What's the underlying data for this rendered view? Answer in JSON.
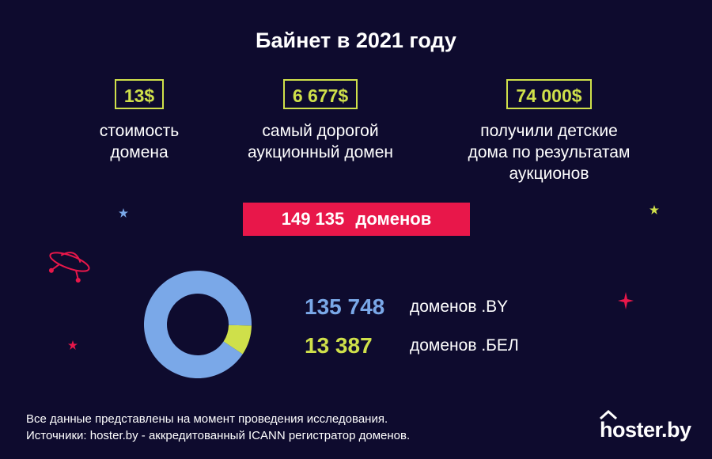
{
  "title": "Байнет в 2021 году",
  "stats": [
    {
      "value": "13$",
      "desc_lines": [
        "стоимость",
        "домена"
      ]
    },
    {
      "value": "6 677$",
      "desc_lines": [
        "самый дорогой",
        "аукционный домен"
      ]
    },
    {
      "value": "74 000$",
      "desc_lines": [
        "получили детские",
        "дома по результатам",
        "аукционов"
      ]
    }
  ],
  "banner": {
    "count": "149 135",
    "unit": "доменов"
  },
  "colors": {
    "background": "#0e0b2e",
    "accent_yellow": "#cfe04a",
    "accent_blue": "#7aa8e8",
    "banner_red": "#e8174a"
  },
  "chart_data": {
    "type": "pie",
    "variant": "donut",
    "title": "",
    "series": [
      {
        "name": "доменов .BY",
        "value": 135748,
        "value_label": "135 748",
        "color": "#7aa8e8"
      },
      {
        "name": "доменов .БЕЛ",
        "value": 13387,
        "value_label": "13 387",
        "color": "#cfe04a"
      }
    ],
    "total": 149135,
    "legend_placement": "right"
  },
  "footer": {
    "line1": "Все данные представлены на момент проведения исследования.",
    "line2": "Источники: hoster.by - аккредитованный ICANN регистратор доменов."
  },
  "logo": {
    "text": "hoster.by"
  },
  "icons": [
    "ufo-icon",
    "star-icon",
    "sparkle-icon",
    "house-roof-icon"
  ]
}
